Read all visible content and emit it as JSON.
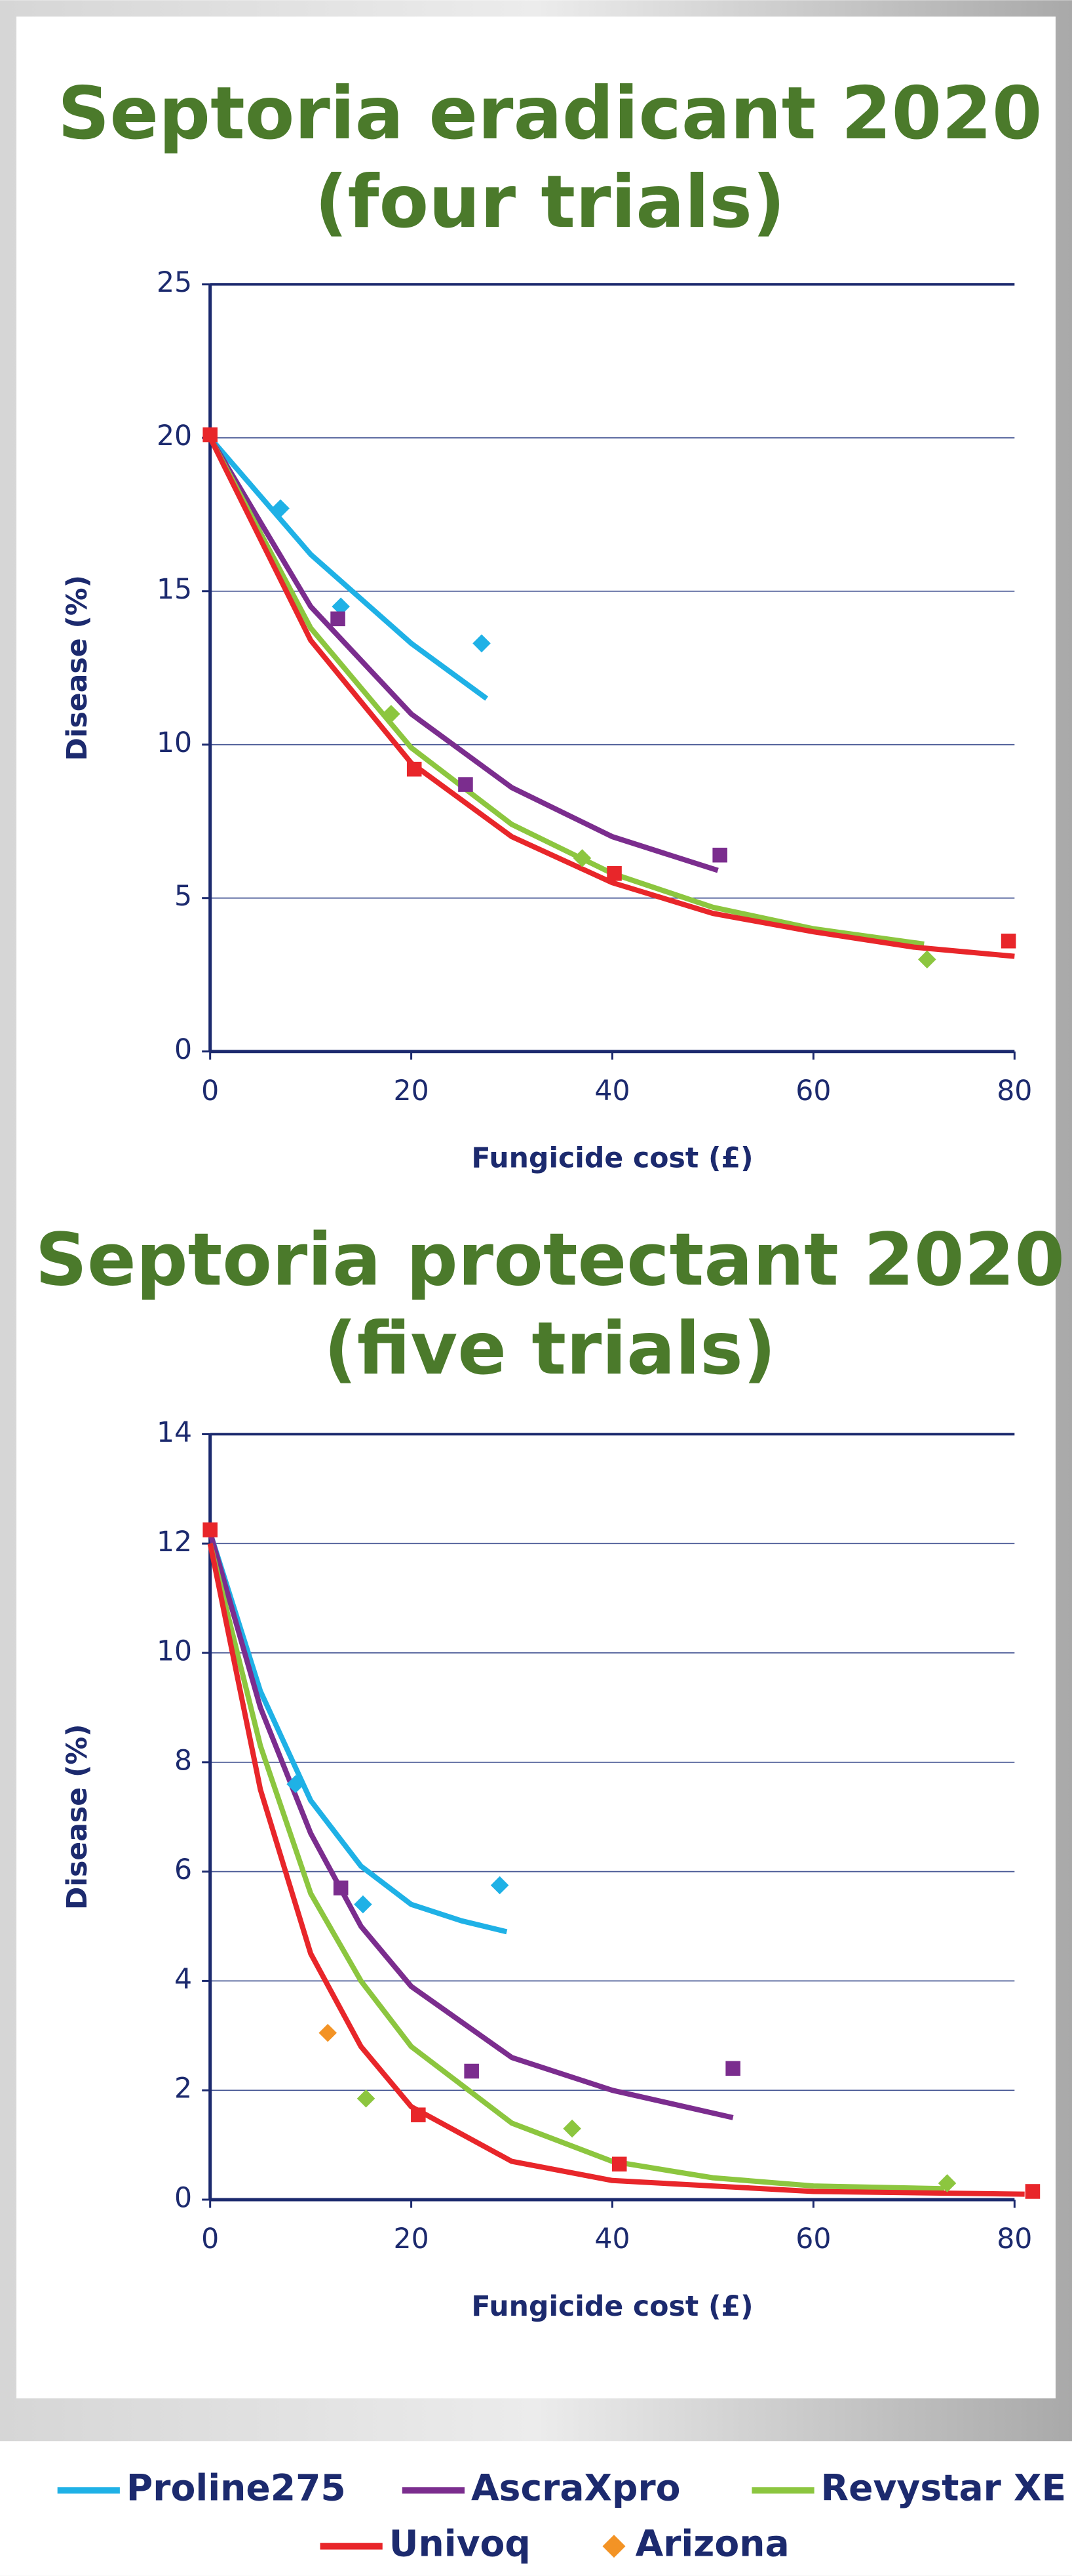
{
  "chart_data": [
    {
      "type": "scatter",
      "title": [
        "Septoria eradicant 2020",
        "(four trials)"
      ],
      "x_label": "Fungicide cost (£)",
      "y_label": "Disease (%)",
      "xlim": [
        0,
        80
      ],
      "xticks": [
        0,
        20,
        40,
        60,
        80
      ],
      "ylim": [
        0,
        25
      ],
      "yticks": [
        0,
        5,
        10,
        15,
        20,
        25
      ],
      "grid": true,
      "series": [
        {
          "color": "#1fb1e6",
          "marker": "diamond",
          "x": [
            7,
            13,
            27
          ],
          "values": [
            17.7,
            14.5,
            13.3
          ],
          "fit_x": [
            0,
            10,
            20,
            27.5
          ],
          "fit_values": [
            20,
            16.2,
            13.3,
            11.5
          ]
        },
        {
          "color": "#7b2d8e",
          "marker": "square",
          "x": [
            12.7,
            25.4,
            50.7
          ],
          "values": [
            14.1,
            8.7,
            6.4
          ],
          "fit_x": [
            0,
            10,
            20,
            30,
            40,
            50.5
          ],
          "fit_values": [
            20,
            14.5,
            11,
            8.6,
            7,
            5.9
          ]
        },
        {
          "color": "#8cc63f",
          "marker": "diamond",
          "x": [
            18,
            37,
            71.3
          ],
          "values": [
            11,
            6.3,
            3.0
          ],
          "fit_x": [
            0,
            10,
            20,
            30,
            40,
            50,
            60,
            71
          ],
          "fit_values": [
            20,
            13.8,
            9.9,
            7.4,
            5.8,
            4.7,
            4,
            3.5
          ]
        },
        {
          "color": "#e8262a",
          "marker": "square",
          "x": [
            0,
            20.3,
            40.2,
            79.4
          ],
          "values": [
            20.1,
            9.2,
            5.8,
            3.6
          ],
          "fit_x": [
            0,
            10,
            20,
            30,
            40,
            50,
            60,
            70,
            80
          ],
          "fit_values": [
            20,
            13.4,
            9.4,
            7,
            5.5,
            4.5,
            3.9,
            3.4,
            3.1
          ]
        }
      ]
    },
    {
      "type": "scatter",
      "title": [
        "Septoria protectant 2020",
        "(five trials)"
      ],
      "x_label": "Fungicide cost (£)",
      "y_label": "Disease (%)",
      "xlim": [
        0,
        80
      ],
      "xticks": [
        0,
        20,
        40,
        60,
        80
      ],
      "ylim": [
        0,
        14
      ],
      "yticks": [
        0,
        2,
        4,
        6,
        8,
        10,
        12,
        14
      ],
      "grid": true,
      "series": [
        {
          "color": "#1fb1e6",
          "marker": "diamond",
          "x": [
            8.5,
            15.2,
            28.8
          ],
          "values": [
            7.6,
            5.4,
            5.75
          ],
          "fit_x": [
            0,
            5,
            10,
            15,
            20,
            25,
            29.5
          ],
          "fit_values": [
            12.2,
            9.3,
            7.3,
            6.1,
            5.4,
            5.1,
            4.9
          ]
        },
        {
          "color": "#7b2d8e",
          "marker": "square",
          "x": [
            13,
            26,
            52
          ],
          "values": [
            5.7,
            2.35,
            2.4
          ],
          "fit_x": [
            0,
            5,
            10,
            15,
            20,
            30,
            40,
            52
          ],
          "fit_values": [
            12.2,
            9,
            6.7,
            5,
            3.9,
            2.6,
            2,
            1.5
          ]
        },
        {
          "color": "#8cc63f",
          "marker": "diamond",
          "x": [
            15.5,
            36,
            73.3
          ],
          "values": [
            1.85,
            1.3,
            0.3
          ],
          "fit_x": [
            0,
            5,
            10,
            15,
            20,
            30,
            40,
            50,
            60,
            73
          ],
          "fit_values": [
            12,
            8.3,
            5.6,
            4,
            2.8,
            1.4,
            0.7,
            0.4,
            0.25,
            0.2
          ]
        },
        {
          "color": "#e8262a",
          "marker": "square",
          "x": [
            0,
            20.7,
            40.7,
            81.8
          ],
          "values": [
            12.25,
            1.55,
            0.65,
            0.15
          ],
          "fit_x": [
            0,
            5,
            10,
            15,
            20,
            30,
            40,
            60,
            81
          ],
          "fit_values": [
            12,
            7.5,
            4.5,
            2.8,
            1.7,
            0.7,
            0.35,
            0.15,
            0.1
          ]
        },
        {
          "color": "#f39325",
          "marker": "diamond",
          "x": [
            11.7
          ],
          "values": [
            3.05
          ]
        }
      ]
    }
  ],
  "legend": [
    {
      "name": "Proline275",
      "color": "#1fb1e6",
      "symbol": "line"
    },
    {
      "name": "AscraXpro",
      "color": "#7b2d8e",
      "symbol": "line"
    },
    {
      "name": "Revystar XE",
      "color": "#8cc63f",
      "symbol": "line"
    },
    {
      "name": "Univoq",
      "color": "#e8262a",
      "symbol": "line"
    },
    {
      "name": "Arizona",
      "color": "#f39325",
      "symbol": "diamond"
    }
  ]
}
